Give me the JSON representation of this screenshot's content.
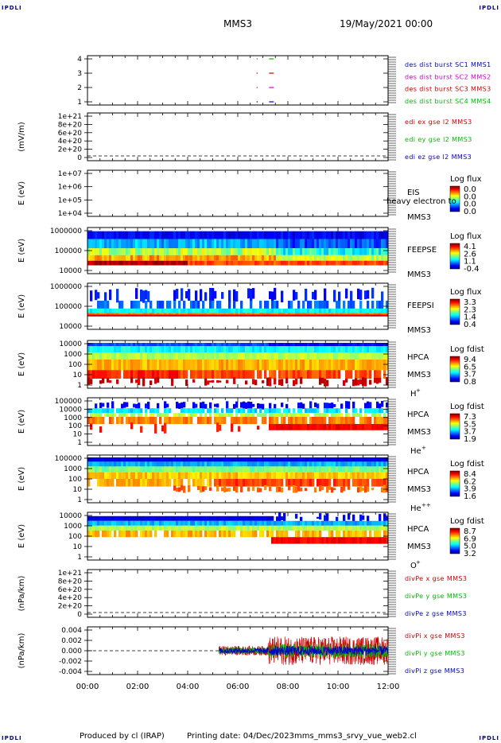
{
  "header": {
    "corner_label": "IPDLI",
    "mission": "MMS3",
    "date": "19/May/2021 00:00"
  },
  "footer": {
    "produced_by": "Produced by cl (IRAP)",
    "printing_date": "Printing date: 04/Dec/2023",
    "script_name": "mms_mms3_srvy_vue_web2.cl"
  },
  "colors": {
    "blue": "#0000cc",
    "magenta": "#cc00cc",
    "red": "#cc0000",
    "green": "#00bb00"
  },
  "chart_data": [
    {
      "type": "scatter",
      "panel": "burst",
      "yticks": [
        "4",
        "3",
        "2",
        "1"
      ],
      "legend": [
        {
          "text": "des dist burst SC1 MMS1",
          "color": "#0000cc"
        },
        {
          "text": "des dist burst SC2 MMS2",
          "color": "#cc00cc"
        },
        {
          "text": "des dist burst SC3 MMS3",
          "color": "#cc0000"
        },
        {
          "text": "des dist burst SC4 MMS4",
          "color": "#00bb00"
        }
      ],
      "series": [
        {
          "name": "des dist burst SC4 MMS4",
          "y": 4,
          "x": [
            "06:45",
            "07:15"
          ]
        },
        {
          "name": "des dist burst SC3 MMS3",
          "y": 3,
          "x": [
            "06:45",
            "07:15"
          ]
        },
        {
          "name": "des dist burst SC2 MMS2",
          "y": 2,
          "x": [
            "06:45",
            "07:15"
          ]
        },
        {
          "name": "des dist burst SC1 MMS1",
          "y": 1,
          "x": [
            "06:45",
            "07:15"
          ]
        }
      ]
    },
    {
      "type": "line",
      "panel": "edi",
      "ylabel": "(mV/m)",
      "yticks": [
        "1e+21",
        "8e+20",
        "6e+20",
        "4e+20",
        "2e+20",
        "0"
      ],
      "legend": [
        {
          "text": "edi ex gse l2 MMS3",
          "color": "#cc0000"
        },
        {
          "text": "edi ey gse l2 MMS3",
          "color": "#00bb00"
        },
        {
          "text": "edi ez gse l2 MMS3",
          "color": "#0000cc"
        }
      ],
      "zero_line": true,
      "series": []
    },
    {
      "type": "heatmap",
      "panel": "eis",
      "ylabel": "E (eV)",
      "yticks": [
        "1e+07",
        "1e+06",
        "1e+05",
        "1e+04"
      ],
      "instrument": "EIS",
      "instrument2": "MMS3",
      "overlay_text": "heavy electron to",
      "cbar_title": "Log flux",
      "cbar_ticks": [
        "0.0",
        "0.0",
        "0.0",
        "0.0"
      ]
    },
    {
      "type": "heatmap",
      "panel": "feepse",
      "ylabel": "E (eV)",
      "yticks": [
        "1000000",
        "100000",
        "10000"
      ],
      "instrument": "FEEPSE",
      "instrument2": "MMS3",
      "cbar_title": "Log flux",
      "cbar_ticks": [
        "4.1",
        "2.6",
        "1.1",
        "-0.4"
      ]
    },
    {
      "type": "heatmap",
      "panel": "feepsi",
      "ylabel": "E (eV)",
      "yticks": [
        "1000000",
        "100000",
        "10000"
      ],
      "instrument": "FEEPSI",
      "instrument2": "MMS3",
      "cbar_title": "Log flux",
      "cbar_ticks": [
        "3.3",
        "2.3",
        "1.4",
        "0.4"
      ]
    },
    {
      "type": "heatmap",
      "panel": "hpca_h",
      "ylabel": "E (eV)",
      "yticks": [
        "10000",
        "1000",
        "100",
        "10",
        "1"
      ],
      "instrument": "HPCA",
      "instrument2": "MMS3",
      "species": "H",
      "species_sup": "+",
      "cbar_title": "Log fdist",
      "cbar_ticks": [
        "9.4",
        "6.5",
        "3.7",
        "0.8"
      ]
    },
    {
      "type": "heatmap",
      "panel": "hpca_he",
      "ylabel": "E (eV)",
      "yticks": [
        "100000",
        "10000",
        "1000",
        "100",
        "10",
        "1"
      ],
      "instrument": "HPCA",
      "instrument2": "MMS3",
      "species": "He",
      "species_sup": "+",
      "cbar_title": "Log fdist",
      "cbar_ticks": [
        "7.3",
        "5.5",
        "3.7",
        "1.9"
      ]
    },
    {
      "type": "heatmap",
      "panel": "hpca_hepp",
      "ylabel": "E (eV)",
      "yticks": [
        "100000",
        "1000",
        "100",
        "10",
        "1"
      ],
      "instrument": "HPCA",
      "instrument2": "MMS3",
      "species": "He",
      "species_sup": "++",
      "cbar_title": "Log fdist",
      "cbar_ticks": [
        "8.4",
        "6.2",
        "3.9",
        "1.6"
      ]
    },
    {
      "type": "heatmap",
      "panel": "hpca_o",
      "ylabel": "E (eV)",
      "yticks": [
        "10000",
        "1000",
        "100",
        "10",
        "1"
      ],
      "instrument": "HPCA",
      "instrument2": "MMS3",
      "species": "O",
      "species_sup": "+",
      "cbar_title": "Log fdist",
      "cbar_ticks": [
        "8.7",
        "6.9",
        "5.0",
        "3.2"
      ]
    },
    {
      "type": "line",
      "panel": "divpe",
      "ylabel": "(nPa/km)",
      "yticks": [
        "1e+21",
        "8e+20",
        "6e+20",
        "4e+20",
        "2e+20",
        "0"
      ],
      "legend": [
        {
          "text": "divPe x gse MMS3",
          "color": "#cc0000"
        },
        {
          "text": "divPe y gse MMS3",
          "color": "#00bb00"
        },
        {
          "text": "divPe z gse MMS3",
          "color": "#0000cc"
        }
      ],
      "zero_line": true,
      "series": []
    },
    {
      "type": "line",
      "panel": "divpi",
      "ylabel": "(nPa/km)",
      "yticks": [
        "0.004",
        "0.002",
        "0.000",
        "-0.002",
        "-0.004"
      ],
      "ylim": [
        -0.005,
        0.005
      ],
      "legend": [
        {
          "text": "divPi x gse MMS3",
          "color": "#cc0000"
        },
        {
          "text": "divPi y gse MMS3",
          "color": "#00bb00"
        },
        {
          "text": "divPi z gse MMS3",
          "color": "#0000cc"
        }
      ],
      "zero_line": true,
      "data_start": "05:15",
      "series": [
        {
          "name": "divPi x gse MMS3",
          "amplitude_early": 0.001,
          "amplitude_late": 0.003
        },
        {
          "name": "divPi y gse MMS3",
          "amplitude_early": 0.0007,
          "amplitude_late": 0.0015
        },
        {
          "name": "divPi z gse MMS3",
          "amplitude_early": 0.0006,
          "amplitude_late": 0.001
        }
      ]
    }
  ],
  "xaxis": {
    "ticks": [
      "00:00",
      "02:00",
      "04:00",
      "06:00",
      "08:00",
      "10:00",
      "12:00"
    ],
    "range_hours": [
      0,
      12
    ]
  }
}
